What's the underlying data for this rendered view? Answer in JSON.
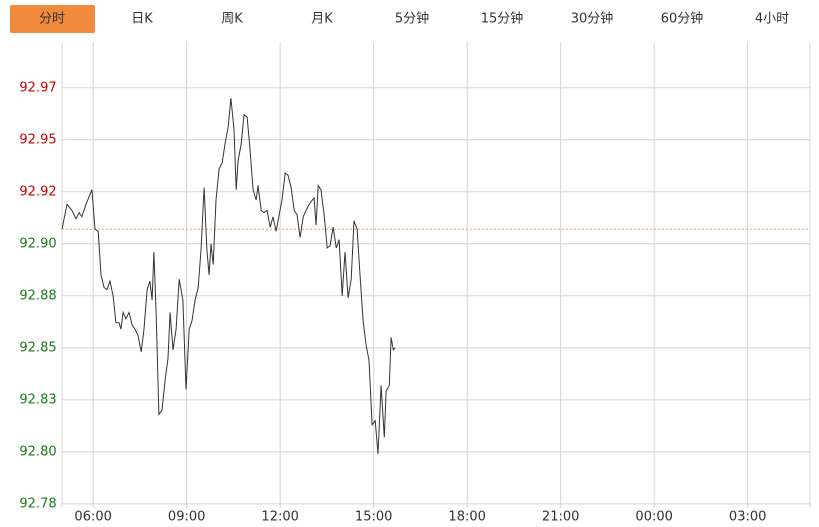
{
  "tabs": [
    "分时",
    "日K",
    "周K",
    "月K",
    "5分钟",
    "15分钟",
    "30分钟",
    "60分钟",
    "4小时"
  ],
  "chart_data": {
    "type": "line",
    "ylim": [
      92.773,
      92.997
    ],
    "yticks": [
      {
        "value": 92.775,
        "label": "92.78"
      },
      {
        "value": 92.8,
        "label": "92.80"
      },
      {
        "value": 92.825,
        "label": "92.83"
      },
      {
        "value": 92.85,
        "label": "92.85"
      },
      {
        "value": 92.875,
        "label": "92.88"
      },
      {
        "value": 92.9,
        "label": "92.90"
      },
      {
        "value": 92.925,
        "label": "92.92"
      },
      {
        "value": 92.95,
        "label": "92.95"
      },
      {
        "value": 92.975,
        "label": "92.97"
      }
    ],
    "xlim": [
      5,
      29
    ],
    "xticks": [
      {
        "value": 6,
        "label": "06:00"
      },
      {
        "value": 9,
        "label": "09:00"
      },
      {
        "value": 12,
        "label": "12:00"
      },
      {
        "value": 15,
        "label": "15:00"
      },
      {
        "value": 18,
        "label": "18:00"
      },
      {
        "value": 21,
        "label": "21:00"
      },
      {
        "value": 24,
        "label": "00:00"
      },
      {
        "value": 27,
        "label": "03:00"
      }
    ],
    "grid": true,
    "ref_line": 92.907,
    "ref_color": "#f4a460",
    "up_color": "#cc0000",
    "down_color": "#1a7a1a",
    "x": [
      5.0,
      5.16,
      5.32,
      5.45,
      5.55,
      5.64,
      5.77,
      5.96,
      6.06,
      6.16,
      6.25,
      6.35,
      6.44,
      6.54,
      6.64,
      6.73,
      6.83,
      6.89,
      6.96,
      7.05,
      7.15,
      7.25,
      7.34,
      7.44,
      7.54,
      7.63,
      7.73,
      7.82,
      7.89,
      7.95,
      8.02,
      8.11,
      8.21,
      8.31,
      8.4,
      8.47,
      8.56,
      8.66,
      8.76,
      8.88,
      8.98,
      9.08,
      9.17,
      9.27,
      9.37,
      9.46,
      9.56,
      9.65,
      9.72,
      9.78,
      9.85,
      9.94,
      10.04,
      10.14,
      10.23,
      10.33,
      10.42,
      10.52,
      10.59,
      10.65,
      10.75,
      10.84,
      10.94,
      11.03,
      11.13,
      11.23,
      11.29,
      11.39,
      11.48,
      11.58,
      11.68,
      11.77,
      11.87,
      11.97,
      12.06,
      12.16,
      12.25,
      12.35,
      12.45,
      12.54,
      12.64,
      12.74,
      12.83,
      12.93,
      13.03,
      13.09,
      13.15,
      13.22,
      13.31,
      13.41,
      13.51,
      13.6,
      13.7,
      13.8,
      13.89,
      13.99,
      14.08,
      14.18,
      14.28,
      14.37,
      14.47,
      14.57,
      14.66,
      14.76,
      14.85,
      14.95,
      15.05,
      15.14,
      15.24,
      15.34,
      15.4,
      15.5,
      15.56,
      15.63,
      15.69
    ],
    "series": [
      {
        "color": "#333333",
        "values": [
          92.907,
          92.919,
          92.916,
          92.912,
          92.915,
          92.913,
          92.919,
          92.926,
          92.907,
          92.906,
          92.885,
          92.879,
          92.878,
          92.882,
          92.875,
          92.862,
          92.862,
          92.859,
          92.867,
          92.864,
          92.867,
          92.861,
          92.859,
          92.856,
          92.848,
          92.859,
          92.878,
          92.882,
          92.873,
          92.896,
          92.867,
          92.818,
          92.82,
          92.835,
          92.845,
          92.867,
          92.849,
          92.859,
          92.883,
          92.873,
          92.83,
          92.859,
          92.863,
          92.873,
          92.879,
          92.897,
          92.927,
          92.897,
          92.885,
          92.9,
          92.89,
          92.921,
          92.936,
          92.939,
          92.948,
          92.956,
          92.97,
          92.955,
          92.926,
          92.94,
          92.948,
          92.962,
          92.961,
          92.946,
          92.926,
          92.921,
          92.928,
          92.916,
          92.915,
          92.916,
          92.908,
          92.913,
          92.906,
          92.914,
          92.921,
          92.934,
          92.933,
          92.927,
          92.916,
          92.914,
          92.903,
          92.913,
          92.916,
          92.919,
          92.921,
          92.922,
          92.909,
          92.928,
          92.926,
          92.914,
          92.898,
          92.899,
          92.908,
          92.898,
          92.902,
          92.875,
          92.896,
          92.874,
          92.883,
          92.911,
          92.907,
          92.883,
          92.863,
          92.851,
          92.844,
          92.813,
          92.815,
          92.799,
          92.832,
          92.807,
          92.829,
          92.832,
          92.855,
          92.849,
          92.85
        ]
      }
    ]
  }
}
